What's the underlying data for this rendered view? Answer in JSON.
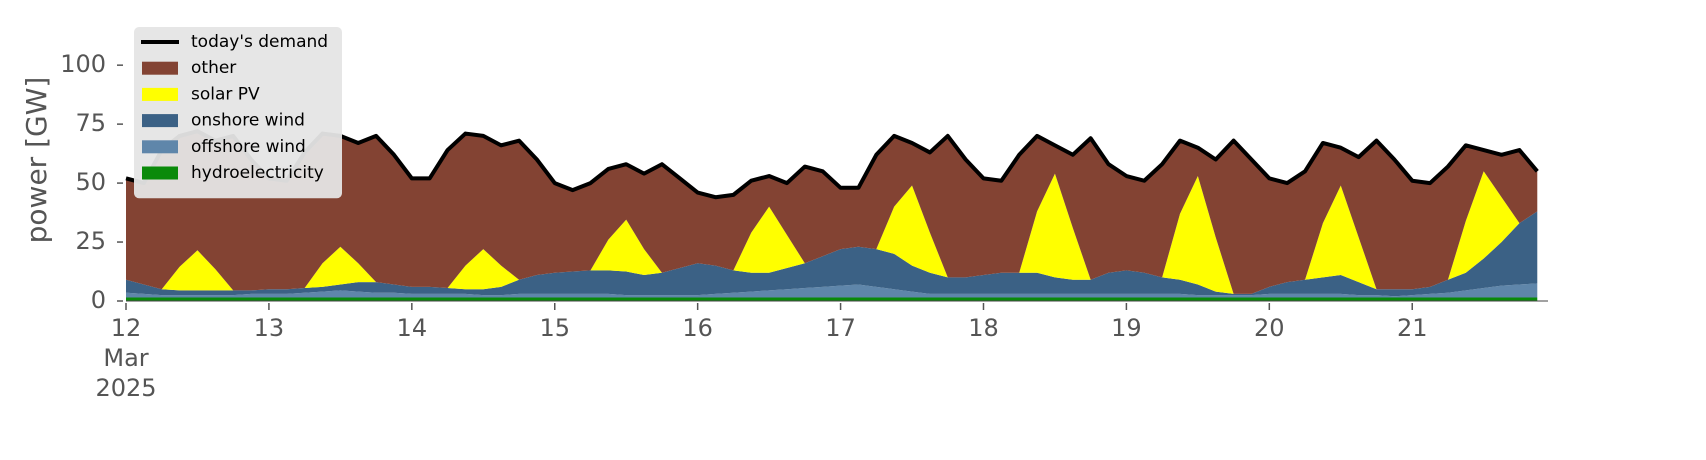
{
  "chart_data": {
    "type": "area",
    "ylabel": "power [GW]",
    "xlim": [
      12,
      21.95
    ],
    "ylim": [
      0,
      120
    ],
    "xticks": [
      {
        "value": 12,
        "label": "12\nMar\n2025"
      },
      13,
      14,
      15,
      16,
      17,
      18,
      19,
      20,
      21
    ],
    "yticks": [
      0,
      25,
      50,
      75,
      100
    ],
    "legend": "upper left",
    "x": [
      12,
      12.125,
      12.25,
      12.375,
      12.5,
      12.625,
      12.75,
      12.875,
      13,
      13.125,
      13.25,
      13.375,
      13.5,
      13.625,
      13.75,
      13.875,
      14,
      14.125,
      14.25,
      14.375,
      14.5,
      14.625,
      14.75,
      14.875,
      15,
      15.125,
      15.25,
      15.375,
      15.5,
      15.625,
      15.75,
      15.875,
      16,
      16.125,
      16.25,
      16.375,
      16.5,
      16.625,
      16.75,
      16.875,
      17,
      17.125,
      17.25,
      17.375,
      17.5,
      17.625,
      17.75,
      17.875,
      18,
      18.125,
      18.25,
      18.375,
      18.5,
      18.625,
      18.75,
      18.875,
      19,
      19.125,
      19.25,
      19.375,
      19.5,
      19.625,
      19.75,
      19.875,
      20,
      20.125,
      20.25,
      20.375,
      20.5,
      20.625,
      20.75,
      20.875,
      21,
      21.125,
      21.25,
      21.375,
      21.5,
      21.625,
      21.75,
      21.875
    ],
    "series": [
      {
        "name": "today's demand",
        "style": "line",
        "color": "#000000",
        "values": [
          52,
          50,
          64,
          70,
          72,
          68,
          70,
          60,
          52,
          51,
          63,
          71,
          70,
          67,
          70,
          62,
          52,
          52,
          64,
          71,
          70,
          66,
          68,
          60,
          50,
          47,
          50,
          56,
          58,
          54,
          58,
          52,
          46,
          44,
          45,
          51,
          53,
          50,
          57,
          55,
          48,
          48,
          62,
          70,
          67,
          63,
          70,
          60,
          52,
          51,
          62,
          70,
          66,
          62,
          69,
          58,
          53,
          51,
          58,
          68,
          65,
          60,
          68,
          60,
          52,
          50,
          55,
          67,
          65,
          61,
          68,
          60,
          51,
          50,
          57,
          66,
          64,
          62,
          64,
          55
        ]
      },
      {
        "name": "other",
        "style": "area",
        "color": "#834333",
        "values": [
          43,
          43,
          59,
          55.5,
          50.5,
          54.5,
          65.5,
          55.5,
          47,
          46,
          57.5,
          55,
          47,
          51,
          62,
          55,
          46,
          46,
          58.5,
          56,
          48,
          51,
          59,
          49,
          38,
          34.5,
          37,
          30,
          23.5,
          32,
          46,
          38,
          30,
          29,
          32,
          22,
          13,
          22,
          41,
          36,
          26,
          25,
          40,
          30,
          18,
          34,
          60,
          50,
          41,
          39,
          50,
          32,
          12,
          31,
          60,
          46,
          40,
          39,
          48,
          31,
          12,
          33,
          65,
          57,
          46,
          42,
          46,
          34,
          16,
          34,
          63,
          55,
          46,
          44,
          48,
          32,
          9,
          18,
          31,
          17
        ]
      },
      {
        "name": "solar PV",
        "style": "area",
        "color": "#ffff00",
        "values": [
          0,
          0,
          0,
          10,
          17,
          9,
          0,
          0,
          0,
          0,
          0,
          10,
          16,
          8,
          0,
          0,
          0,
          0,
          0,
          10,
          17,
          9,
          0,
          0,
          0,
          0,
          0,
          13,
          22,
          11,
          0,
          0,
          0,
          0,
          0,
          17,
          28,
          14,
          0,
          0,
          0,
          0,
          0,
          20,
          34,
          17,
          0,
          0,
          0,
          0,
          0,
          26,
          44,
          22,
          0,
          0,
          0,
          0,
          0,
          28,
          46,
          23,
          0,
          0,
          0,
          0,
          0,
          23,
          38,
          19,
          0,
          0,
          0,
          0,
          0,
          22,
          37,
          19,
          0,
          0
        ]
      },
      {
        "name": "onshore wind",
        "style": "area",
        "color": "#3b6185",
        "values": [
          5.5,
          4,
          2.5,
          2,
          2,
          2,
          2,
          1.5,
          2,
          2,
          2,
          2,
          2.5,
          4,
          4.5,
          3.5,
          3,
          3,
          2.5,
          2,
          2.5,
          3.5,
          6,
          8,
          9,
          9.5,
          10,
          10,
          10,
          8.5,
          9.5,
          11.5,
          13.5,
          12,
          9.5,
          8,
          7.5,
          9,
          10.5,
          13,
          15.5,
          16,
          16,
          15,
          11,
          9,
          7,
          7,
          8,
          9,
          9,
          9,
          7,
          6,
          6,
          9,
          10,
          9,
          7,
          6,
          4.5,
          1.5,
          0.5,
          0.5,
          3,
          5,
          6,
          7,
          8,
          5.5,
          2.5,
          3,
          2.5,
          3,
          5.5,
          7.5,
          12.5,
          18.5,
          26,
          30.5
        ]
      },
      {
        "name": "offshore wind",
        "style": "area",
        "color": "#5f86aa",
        "values": [
          2,
          1.5,
          1,
          1,
          1,
          1,
          1,
          1.5,
          1.5,
          1.5,
          2,
          2.5,
          3,
          2.5,
          2,
          2,
          1.5,
          1.5,
          1.5,
          1.5,
          1,
          1,
          1.5,
          1.5,
          1.5,
          1.5,
          1.5,
          1.5,
          1,
          1,
          1,
          1,
          1,
          1.5,
          2,
          2.5,
          3,
          3.5,
          4,
          4.5,
          5,
          5.5,
          4.5,
          3.5,
          2.5,
          1.5,
          1.5,
          1.5,
          1.5,
          1.5,
          1.5,
          1.5,
          1.5,
          1.5,
          1.5,
          1.5,
          1.5,
          1.5,
          1.5,
          1.5,
          1,
          1,
          1,
          1,
          1.5,
          1.5,
          1.5,
          1.5,
          1.5,
          1,
          1,
          0.5,
          1,
          1.5,
          2,
          3,
          4,
          5,
          5.5,
          6
        ]
      },
      {
        "name": "hydroelectricity",
        "style": "area",
        "color": "#0a8a0a",
        "values": [
          1.5,
          1.5,
          1.5,
          1.5,
          1.5,
          1.5,
          1.5,
          1.5,
          1.5,
          1.5,
          1.5,
          1.5,
          1.5,
          1.5,
          1.5,
          1.5,
          1.5,
          1.5,
          1.5,
          1.5,
          1.5,
          1.5,
          1.5,
          1.5,
          1.5,
          1.5,
          1.5,
          1.5,
          1.5,
          1.5,
          1.5,
          1.5,
          1.5,
          1.5,
          1.5,
          1.5,
          1.5,
          1.5,
          1.5,
          1.5,
          1.5,
          1.5,
          1.5,
          1.5,
          1.5,
          1.5,
          1.5,
          1.5,
          1.5,
          1.5,
          1.5,
          1.5,
          1.5,
          1.5,
          1.5,
          1.5,
          1.5,
          1.5,
          1.5,
          1.5,
          1.5,
          1.5,
          1.5,
          1.5,
          1.5,
          1.5,
          1.5,
          1.5,
          1.5,
          1.5,
          1.5,
          1.5,
          1.5,
          1.5,
          1.5,
          1.5,
          1.5,
          1.5,
          1.5,
          1.5
        ]
      }
    ]
  }
}
